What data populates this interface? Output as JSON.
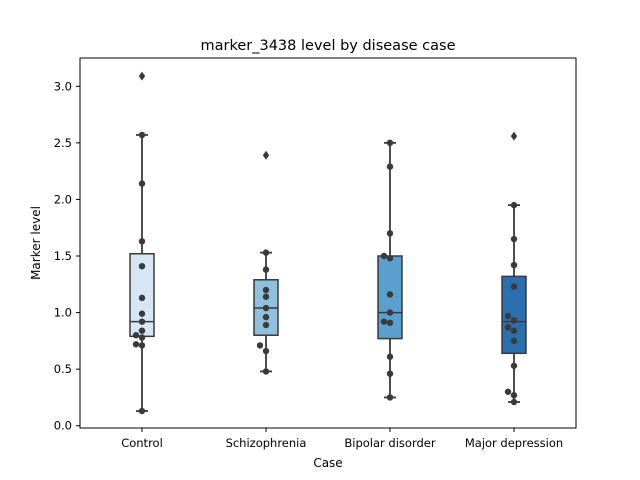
{
  "chart_data": {
    "type": "box",
    "title": "marker_3438 level by disease case",
    "xlabel": "Case",
    "ylabel": "Marker level",
    "ylim": [
      -0.02,
      3.25
    ],
    "yticks": [
      "0.0",
      "0.5",
      "1.0",
      "1.5",
      "2.0",
      "2.5",
      "3.0"
    ],
    "categories": [
      "Control",
      "Schizophrenia",
      "Bipolar disorder",
      "Major depression"
    ],
    "colors": [
      "#d6e6f4",
      "#8fc1de",
      "#5a9fcd",
      "#2b6fae"
    ],
    "boxes": [
      {
        "q1": 0.79,
        "median": 0.92,
        "q3": 1.52,
        "whisker_low": 0.13,
        "whisker_high": 2.57,
        "outliers": [
          3.09
        ]
      },
      {
        "q1": 0.8,
        "median": 1.04,
        "q3": 1.29,
        "whisker_low": 0.48,
        "whisker_high": 1.53,
        "outliers": [
          2.39
        ]
      },
      {
        "q1": 0.77,
        "median": 1.0,
        "q3": 1.5,
        "whisker_low": 0.25,
        "whisker_high": 2.5,
        "outliers": []
      },
      {
        "q1": 0.64,
        "median": 0.92,
        "q3": 1.32,
        "whisker_low": 0.21,
        "whisker_high": 1.95,
        "outliers": [
          2.56
        ]
      }
    ],
    "points": [
      [
        0.13,
        0.71,
        0.72,
        0.78,
        0.8,
        0.84,
        0.92,
        0.99,
        1.13,
        1.41,
        1.63,
        2.14,
        2.57
      ],
      [
        0.48,
        0.66,
        0.71,
        0.89,
        0.96,
        1.04,
        1.14,
        1.2,
        1.38,
        1.53
      ],
      [
        0.25,
        0.46,
        0.61,
        0.91,
        0.92,
        1.0,
        1.16,
        1.48,
        1.5,
        1.7,
        2.29,
        2.5
      ],
      [
        0.21,
        0.27,
        0.3,
        0.53,
        0.75,
        0.84,
        0.87,
        0.93,
        0.97,
        1.23,
        1.42,
        1.65,
        1.95
      ]
    ]
  }
}
